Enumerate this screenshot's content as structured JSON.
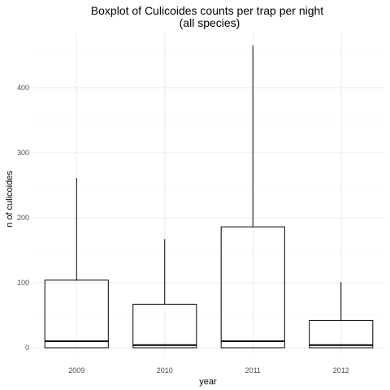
{
  "chart_data": {
    "type": "boxplot",
    "title": "Boxplot of Culicoides counts per trap per night",
    "subtitle": "(all species)",
    "xlabel": "year",
    "ylabel": "n of culicoides",
    "ylim": [
      -8,
      475
    ],
    "yticks": [
      0,
      100,
      200,
      300,
      400
    ],
    "grid": true,
    "categories": [
      "2009",
      "2010",
      "2011",
      "2012"
    ],
    "boxes": [
      {
        "category": "2009",
        "min": 0,
        "q1": 0,
        "median": 10,
        "q3": 104,
        "max": 261
      },
      {
        "category": "2010",
        "min": 0,
        "q1": 0,
        "median": 4,
        "q3": 67,
        "max": 167
      },
      {
        "category": "2011",
        "min": 0,
        "q1": 0,
        "median": 10,
        "q3": 186,
        "max": 465
      },
      {
        "category": "2012",
        "min": 0,
        "q1": 0,
        "median": 4,
        "q3": 42,
        "max": 101
      }
    ]
  }
}
